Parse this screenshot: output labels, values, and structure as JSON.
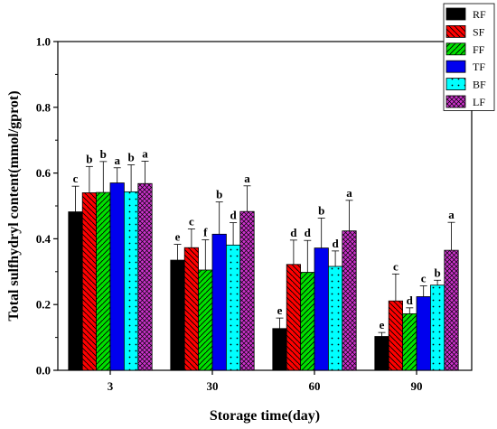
{
  "chart_data": {
    "type": "bar",
    "xlabel": "Storage time(day)",
    "ylabel": "Total sulfhydryl content(mmol/gprot)",
    "ylim": [
      0.0,
      1.0
    ],
    "yticks": [
      "0.0",
      "0.2",
      "0.4",
      "0.6",
      "0.8",
      "1.0"
    ],
    "categories": [
      "3",
      "30",
      "60",
      "90"
    ],
    "legend_position": "top-right",
    "series": [
      {
        "name": "RF",
        "color": "#000000",
        "pattern": "solid",
        "values": [
          0.482,
          0.335,
          0.127,
          0.103
        ],
        "errors": [
          0.078,
          0.048,
          0.032,
          0.012
        ],
        "letters": [
          "c",
          "e",
          "e",
          "e"
        ]
      },
      {
        "name": "SF",
        "color": "#ff0000",
        "pattern": "backslash",
        "values": [
          0.54,
          0.373,
          0.322,
          0.211
        ],
        "errors": [
          0.08,
          0.057,
          0.074,
          0.082
        ],
        "letters": [
          "b",
          "c",
          "d",
          "c"
        ]
      },
      {
        "name": "FF",
        "color": "#00e000",
        "pattern": "slash",
        "values": [
          0.541,
          0.305,
          0.298,
          0.172
        ],
        "errors": [
          0.094,
          0.092,
          0.097,
          0.018
        ],
        "letters": [
          "b",
          "f",
          "d",
          "d"
        ]
      },
      {
        "name": "TF",
        "color": "#0000ee",
        "pattern": "solid",
        "values": [
          0.57,
          0.414,
          0.372,
          0.224
        ],
        "errors": [
          0.046,
          0.098,
          0.091,
          0.033
        ],
        "letters": [
          "a",
          "b",
          "b",
          "c"
        ]
      },
      {
        "name": "BF",
        "color": "#00ffff",
        "pattern": "dots",
        "values": [
          0.543,
          0.381,
          0.316,
          0.259
        ],
        "errors": [
          0.082,
          0.068,
          0.047,
          0.015
        ],
        "letters": [
          "b",
          "d",
          "d",
          "b"
        ]
      },
      {
        "name": "LF",
        "color": "#cc33cc",
        "pattern": "crosshatch",
        "values": [
          0.568,
          0.483,
          0.424,
          0.365
        ],
        "errors": [
          0.068,
          0.078,
          0.093,
          0.085
        ],
        "letters": [
          "a",
          "a",
          "a",
          "a"
        ]
      }
    ]
  }
}
